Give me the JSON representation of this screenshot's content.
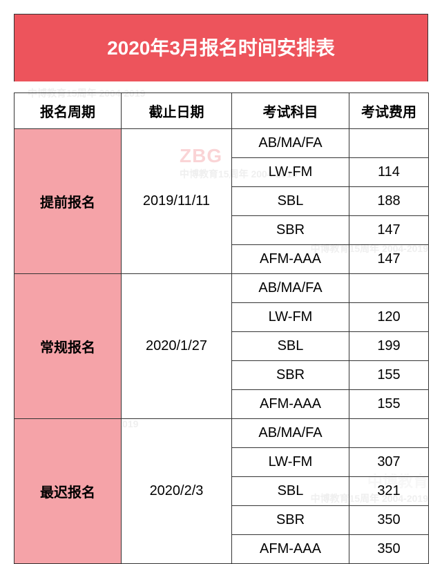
{
  "title": "2020年3月报名时间安排表",
  "columns": [
    "报名周期",
    "截止日期",
    "考试科目",
    "考试费用"
  ],
  "periods": [
    {
      "name": "提前报名",
      "deadline": "2019/11/11",
      "rows": [
        {
          "subject": "AB/MA/FA",
          "fee": ""
        },
        {
          "subject": "LW-FM",
          "fee": "114"
        },
        {
          "subject": "SBL",
          "fee": "188"
        },
        {
          "subject": "SBR",
          "fee": "147"
        },
        {
          "subject": "AFM-AAA",
          "fee": "147"
        }
      ]
    },
    {
      "name": "常规报名",
      "deadline": "2020/1/27",
      "rows": [
        {
          "subject": "AB/MA/FA",
          "fee": ""
        },
        {
          "subject": "LW-FM",
          "fee": "120"
        },
        {
          "subject": "SBL",
          "fee": "199"
        },
        {
          "subject": "SBR",
          "fee": "155"
        },
        {
          "subject": "AFM-AAA",
          "fee": "155"
        }
      ]
    },
    {
      "name": "最迟报名",
      "deadline": "2020/2/3",
      "rows": [
        {
          "subject": "AB/MA/FA",
          "fee": ""
        },
        {
          "subject": "LW-FM",
          "fee": "307"
        },
        {
          "subject": "SBL",
          "fee": "321"
        },
        {
          "subject": "SBR",
          "fee": "350"
        },
        {
          "subject": "AFM-AAA",
          "fee": "350"
        }
      ]
    }
  ],
  "watermark": {
    "brand": "ZBG",
    "cn": "中博教育",
    "line": "中博教育15周年 2004-2019"
  },
  "colors": {
    "header_bg": "#ed545c",
    "period_bg": "#f5a3a8",
    "border": "#333333",
    "text": "#000000",
    "title_text": "#ffffff"
  }
}
